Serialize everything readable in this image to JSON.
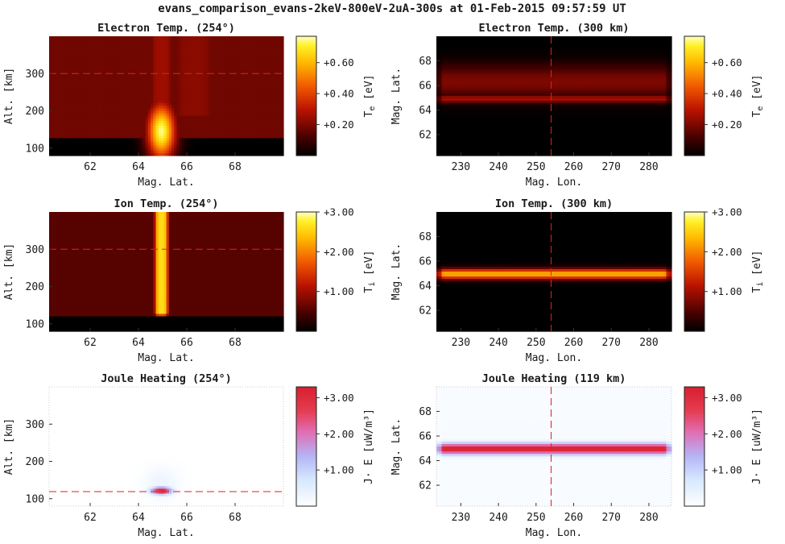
{
  "figure": {
    "title": "evans_comparison_evans-2keV-800eV-2uA-300s at 01-Feb-2015 09:57:59 UT"
  },
  "chart_data": [
    {
      "type": "heatmap",
      "id": "electron-temp-254",
      "title": "Electron Temp. (254°)",
      "xlabel": "Mag. Lat.",
      "ylabel": "Alt. [km]",
      "xlim": [
        60.3,
        70.0
      ],
      "ylim": [
        80,
        400
      ],
      "xticks": [
        62,
        64,
        66,
        68
      ],
      "yticks": [
        100,
        200,
        300
      ],
      "colormap": "hot",
      "colorbar": {
        "label": "T",
        "sub": "e",
        "unit": " [eV]",
        "ticks": [
          "+0.20",
          "+0.40",
          "+0.60"
        ],
        "tick_values": [
          0.2,
          0.4,
          0.6
        ],
        "range": [
          0,
          0.77
        ]
      },
      "reference_line": {
        "orientation": "horizontal",
        "value": 300,
        "color": "#dd2222"
      },
      "features": [
        {
          "kind": "background-layers",
          "bottom_cut": 130,
          "low_value": 0.0,
          "high_value": 0.18
        },
        {
          "kind": "column",
          "x_center": 64.95,
          "width": 1.0,
          "value": 0.25
        },
        {
          "kind": "column",
          "x_center": 66.3,
          "width": 2.0,
          "y_min": 180,
          "value": 0.22
        },
        {
          "kind": "blob",
          "x_center": 64.95,
          "y_center": 145,
          "x_sigma": 0.42,
          "y_sigma": 55,
          "value": 0.75
        }
      ]
    },
    {
      "type": "heatmap",
      "id": "electron-temp-300km",
      "title": "Electron Temp. (300 km)",
      "xlabel": "Mag. Lon.",
      "ylabel": "Mag. Lat.",
      "xlim": [
        223.5,
        286.0
      ],
      "ylim": [
        60.3,
        70.0
      ],
      "xticks": [
        230,
        240,
        250,
        260,
        270,
        280
      ],
      "yticks": [
        62,
        64,
        66,
        68
      ],
      "colormap": "hot",
      "colorbar": {
        "label": "T",
        "sub": "e",
        "unit": " [eV]",
        "ticks": [
          "+0.20",
          "+0.40",
          "+0.60"
        ],
        "tick_values": [
          0.2,
          0.4,
          0.6
        ],
        "range": [
          0,
          0.77
        ]
      },
      "reference_line": {
        "orientation": "vertical",
        "value": 254,
        "color": "#dd2222"
      },
      "features": [
        {
          "kind": "band",
          "y_center": 66.3,
          "y_sigma": 1.0,
          "value": 0.2
        },
        {
          "kind": "band",
          "y_center": 64.9,
          "y_sigma": 0.25,
          "value": 0.26
        }
      ]
    },
    {
      "type": "heatmap",
      "id": "ion-temp-254",
      "title": "Ion Temp. (254°)",
      "xlabel": "Mag. Lat.",
      "ylabel": "Alt. [km]",
      "xlim": [
        60.3,
        70.0
      ],
      "ylim": [
        80,
        400
      ],
      "xticks": [
        62,
        64,
        66,
        68
      ],
      "yticks": [
        100,
        200,
        300
      ],
      "colormap": "hot",
      "colorbar": {
        "label": "T",
        "sub": "i",
        "unit": " [eV]",
        "ticks": [
          "+1.00",
          "+2.00",
          "+3.00"
        ],
        "tick_values": [
          1.0,
          2.0,
          3.0
        ],
        "range": [
          0,
          3.0
        ]
      },
      "reference_line": {
        "orientation": "horizontal",
        "value": 300,
        "color": "#dd2222"
      },
      "features": [
        {
          "kind": "background-layers",
          "bottom_cut": 120,
          "low_value": 0.0,
          "high_value": 0.55
        },
        {
          "kind": "column",
          "x_center": 64.95,
          "width": 0.55,
          "y_min": 120,
          "value": 2.6
        }
      ]
    },
    {
      "type": "heatmap",
      "id": "ion-temp-300km",
      "title": "Ion Temp. (300 km)",
      "xlabel": "Mag. Lon.",
      "ylabel": "Mag. Lat.",
      "xlim": [
        223.5,
        286.0
      ],
      "ylim": [
        60.3,
        70.0
      ],
      "xticks": [
        230,
        240,
        250,
        260,
        270,
        280
      ],
      "yticks": [
        62,
        64,
        66,
        68
      ],
      "colormap": "hot",
      "colorbar": {
        "label": "T",
        "sub": "i",
        "unit": " [eV]",
        "ticks": [
          "+1.00",
          "+2.00",
          "+3.00"
        ],
        "tick_values": [
          1.0,
          2.0,
          3.0
        ],
        "range": [
          0,
          3.0
        ]
      },
      "reference_line": {
        "orientation": "vertical",
        "value": 254,
        "color": "#dd2222"
      },
      "features": [
        {
          "kind": "band",
          "y_center": 64.95,
          "y_sigma": 0.3,
          "value": 2.3
        }
      ]
    },
    {
      "type": "heatmap",
      "id": "joule-heating-254",
      "title": "Joule Heating (254°)",
      "xlabel": "Mag. Lat.",
      "ylabel": "Alt. [km]",
      "xlim": [
        60.3,
        70.0
      ],
      "ylim": [
        80,
        400
      ],
      "xticks": [
        62,
        64,
        66,
        68
      ],
      "yticks": [
        100,
        200,
        300
      ],
      "colormap": "white-blue-red",
      "colorbar": {
        "label": "J· E",
        "sub": "",
        "unit": " [uW/m³]",
        "ticks": [
          "+1.00",
          "+2.00",
          "+3.00"
        ],
        "tick_values": [
          1.0,
          2.0,
          3.0
        ],
        "range": [
          0,
          3.3
        ]
      },
      "reference_line": {
        "orientation": "horizontal",
        "value": 119,
        "color": "#dd2222"
      },
      "features": [
        {
          "kind": "blob",
          "x_center": 64.95,
          "y_center": 140,
          "x_sigma": 0.5,
          "y_sigma": 30,
          "value": 0.35
        },
        {
          "kind": "blob",
          "x_center": 64.95,
          "y_center": 121,
          "x_sigma": 0.3,
          "y_sigma": 7,
          "value": 3.3
        }
      ]
    },
    {
      "type": "heatmap",
      "id": "joule-heating-119km",
      "title": "Joule Heating (119 km)",
      "xlabel": "Mag. Lon.",
      "ylabel": "Mag. Lat.",
      "xlim": [
        223.5,
        286.0
      ],
      "ylim": [
        60.3,
        70.0
      ],
      "xticks": [
        230,
        240,
        250,
        260,
        270,
        280
      ],
      "yticks": [
        62,
        64,
        66,
        68
      ],
      "colormap": "white-blue-red",
      "colorbar": {
        "label": "J· E",
        "sub": "",
        "unit": " [uW/m³]",
        "ticks": [
          "+1.00",
          "+2.00",
          "+3.00"
        ],
        "tick_values": [
          1.0,
          2.0,
          3.0
        ],
        "range": [
          0,
          3.3
        ]
      },
      "reference_line": {
        "orientation": "vertical",
        "value": 254,
        "color": "#dd2222"
      },
      "features": [
        {
          "kind": "background",
          "value": 0.12
        },
        {
          "kind": "band",
          "y_center": 66.5,
          "y_sigma": 1.6,
          "value": 0.15
        },
        {
          "kind": "band",
          "y_center": 64.95,
          "y_sigma": 0.32,
          "value": 3.3
        }
      ]
    }
  ]
}
